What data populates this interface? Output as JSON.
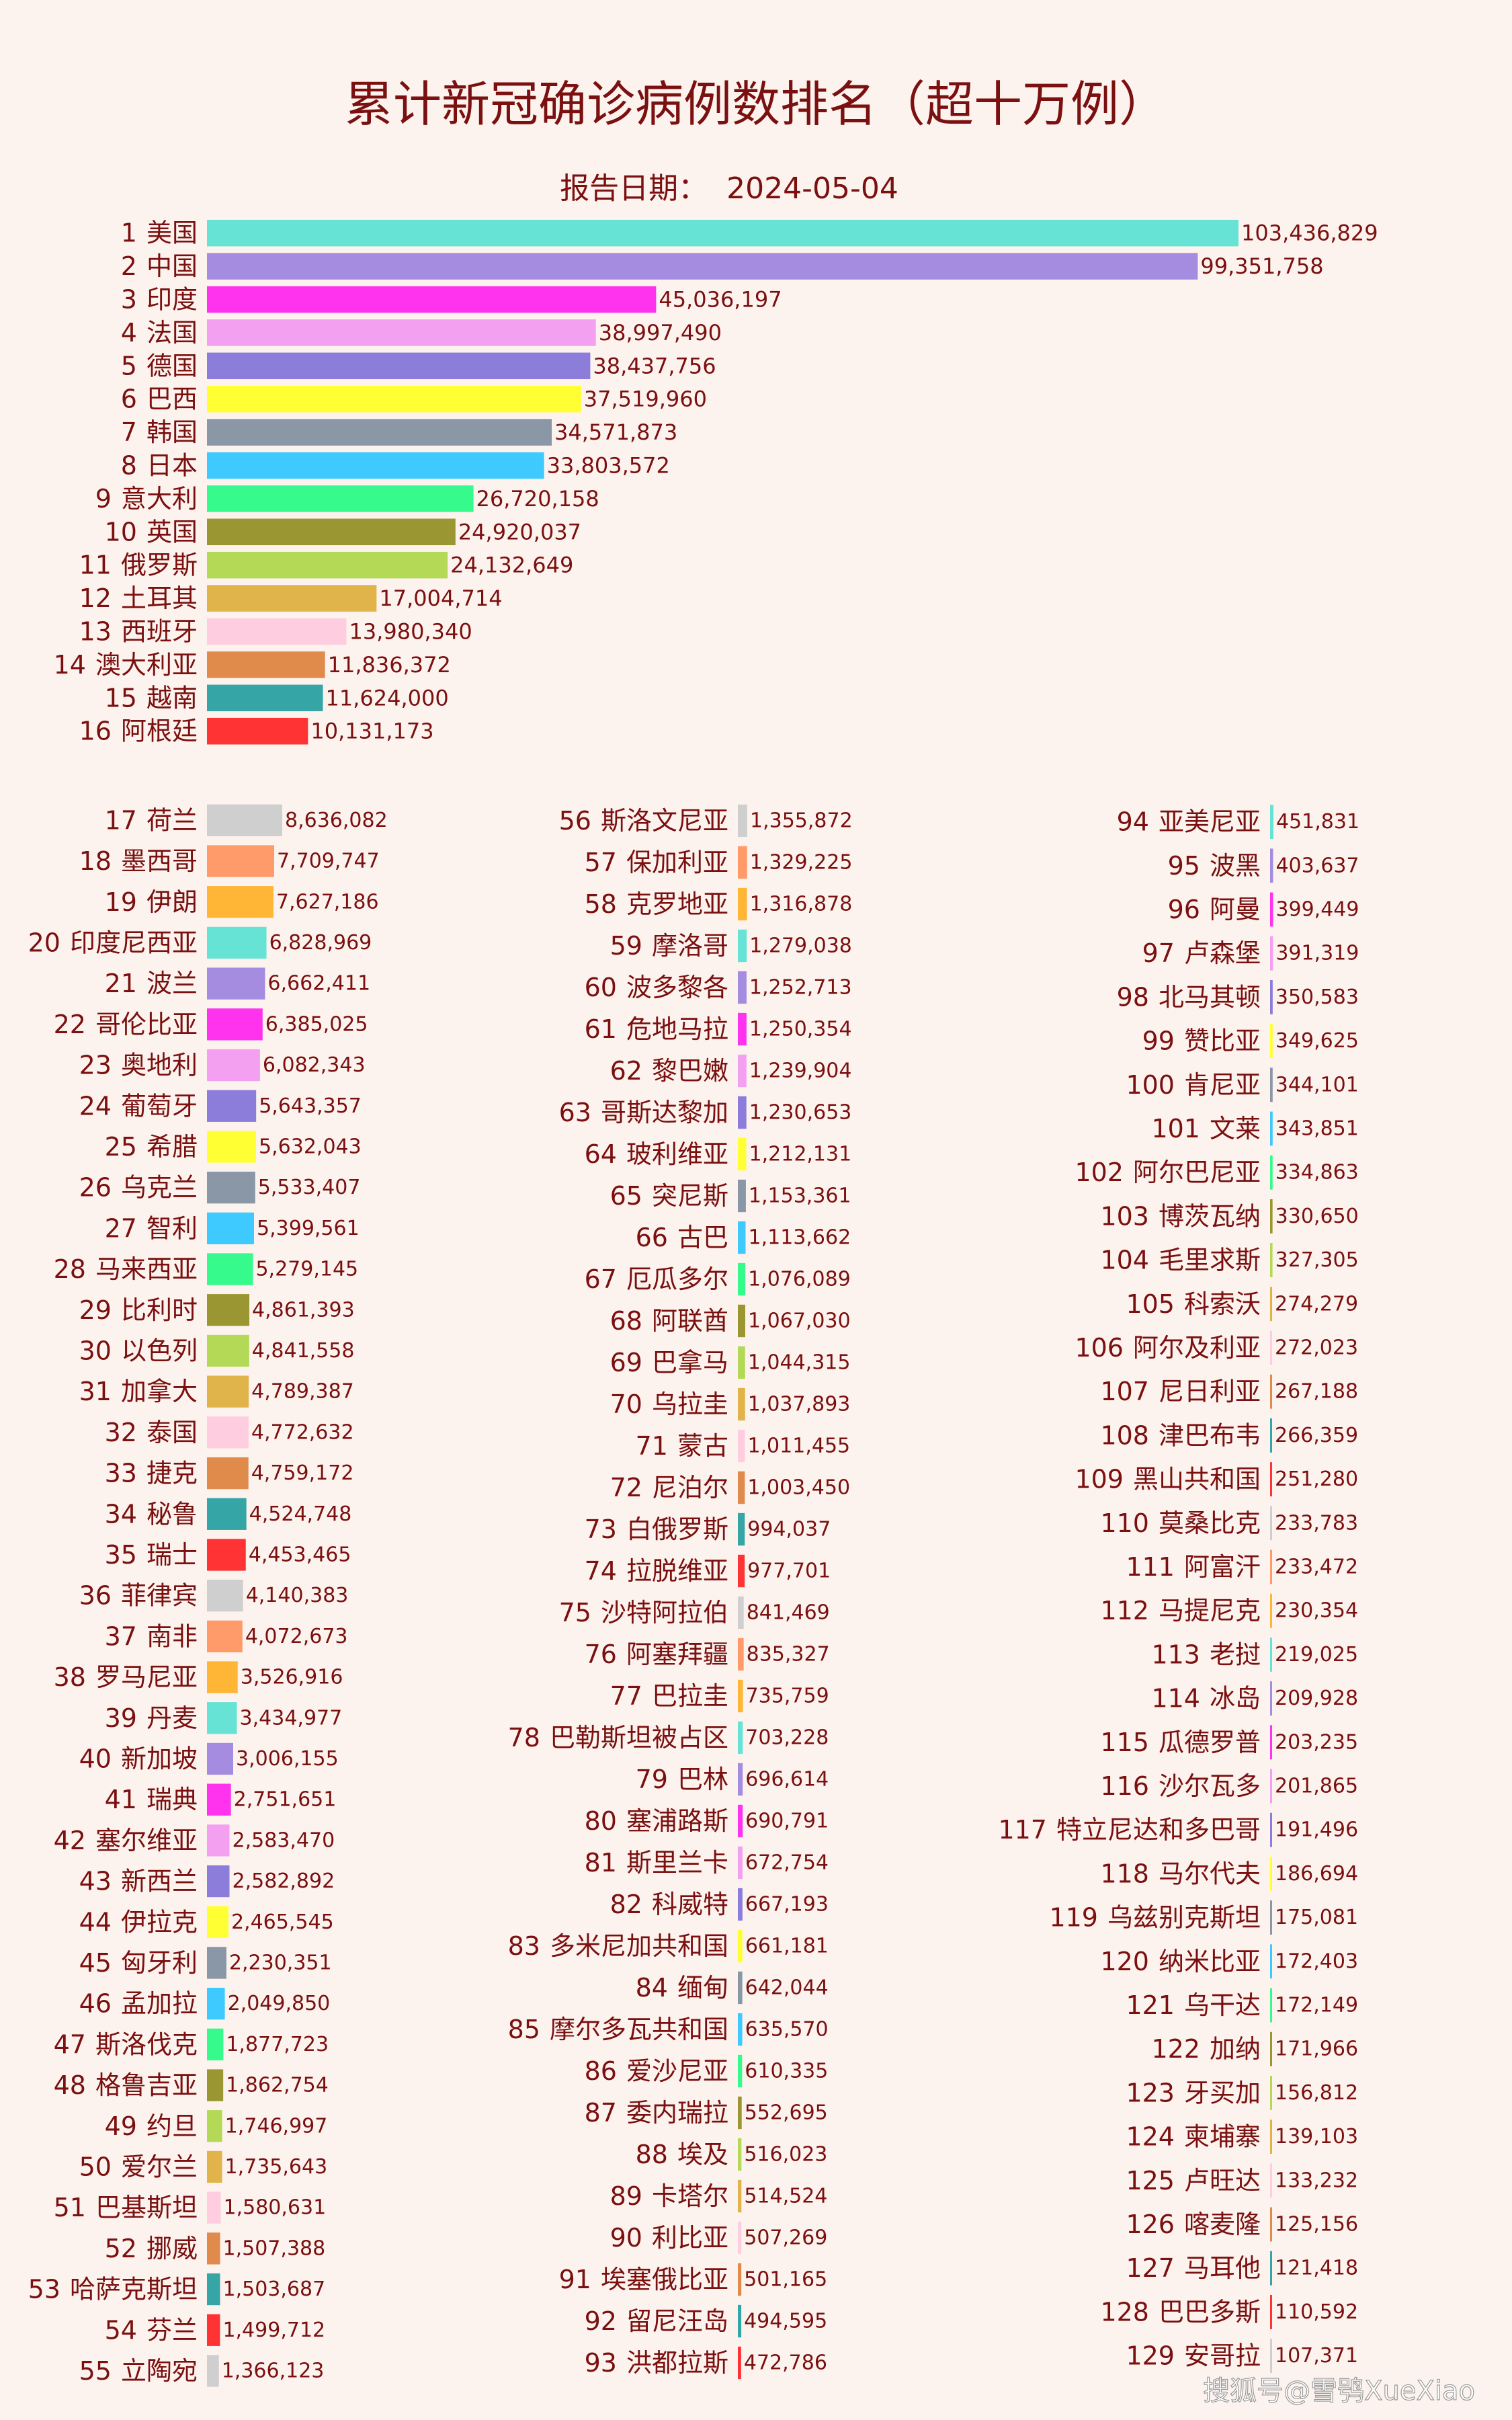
{
  "title": "累计新冠确诊病例数排名（超十万例）",
  "subtitle": "报告日期：  2024-05-04",
  "watermark": "搜狐号@雪鸮XueXiao",
  "colors": {
    "background": "#fdf3ee",
    "title": "#7a1010",
    "label": "#7a1010",
    "value": "#7a1010",
    "palette": [
      "#66e3d5",
      "#a58ce0",
      "#ff33ee",
      "#f3a0f0",
      "#8c7ddb",
      "#ffff33",
      "#8a97a6",
      "#3fcaff",
      "#36fa8c",
      "#9a9632",
      "#b4d956",
      "#e0b44a",
      "#ffcde0",
      "#e08a4c",
      "#36a5a5",
      "#ff3333",
      "#cfcfcf",
      "#ff9a6a",
      "#ffb637"
    ]
  },
  "chart_data": {
    "type": "bar",
    "orientation": "horizontal",
    "title": "累计新冠确诊病例数排名（超十万例）",
    "subtitle": "报告日期：  2024-05-04",
    "top_group": {
      "ranks": [
        "1",
        "2",
        "3",
        "4",
        "5",
        "6",
        "7",
        "8",
        "9",
        "10",
        "11",
        "12",
        "13",
        "14",
        "15",
        "16"
      ],
      "categories": [
        "美国",
        "中国",
        "印度",
        "法国",
        "德国",
        "巴西",
        "韩国",
        "日本",
        "意大利",
        "英国",
        "俄罗斯",
        "土耳其",
        "西班牙",
        "澳大利亚",
        "越南",
        "阿根廷"
      ],
      "values": [
        103436829,
        99351758,
        45036197,
        38997490,
        38437756,
        37519960,
        34571873,
        33803572,
        26720158,
        24920037,
        24132649,
        17004714,
        13980340,
        11836372,
        11624000,
        10131173
      ],
      "value_labels": [
        "103,436,829",
        "99,351,758",
        "45,036,197",
        "38,997,490",
        "38,437,756",
        "37,519,960",
        "34,571,873",
        "33,803,572",
        "26,720,158",
        "24,920,037",
        "24,132,649",
        "17,004,714",
        "13,980,340",
        "11,836,372",
        "11,624,000",
        "10,131,173"
      ]
    },
    "columns": [
      {
        "ranks": [
          "17",
          "18",
          "19",
          "20",
          "21",
          "22",
          "23",
          "24",
          "25",
          "26",
          "27",
          "28",
          "29",
          "30",
          "31",
          "32",
          "33",
          "34",
          "35",
          "36",
          "37",
          "38",
          "39",
          "40",
          "41",
          "42",
          "43",
          "44",
          "45",
          "46",
          "47",
          "48",
          "49",
          "50",
          "51",
          "52",
          "53",
          "54",
          "55"
        ],
        "categories": [
          "荷兰",
          "墨西哥",
          "伊朗",
          "印度尼西亚",
          "波兰",
          "哥伦比亚",
          "奥地利",
          "葡萄牙",
          "希腊",
          "乌克兰",
          "智利",
          "马来西亚",
          "比利时",
          "以色列",
          "加拿大",
          "泰国",
          "捷克",
          "秘鲁",
          "瑞士",
          "菲律宾",
          "南非",
          "罗马尼亚",
          "丹麦",
          "新加坡",
          "瑞典",
          "塞尔维亚",
          "新西兰",
          "伊拉克",
          "匈牙利",
          "孟加拉",
          "斯洛伐克",
          "格鲁吉亚",
          "约旦",
          "爱尔兰",
          "巴基斯坦",
          "挪威",
          "哈萨克斯坦",
          "芬兰",
          "立陶宛"
        ],
        "values": [
          8636082,
          7709747,
          7627186,
          6828969,
          6662411,
          6385025,
          6082343,
          5643357,
          5632043,
          5533407,
          5399561,
          5279145,
          4861393,
          4841558,
          4789387,
          4772632,
          4759172,
          4524748,
          4453465,
          4140383,
          4072673,
          3526916,
          3434977,
          3006155,
          2751651,
          2583470,
          2582892,
          2465545,
          2230351,
          2049850,
          1877723,
          1862754,
          1746997,
          1735643,
          1580631,
          1507388,
          1503687,
          1499712,
          1366123
        ],
        "value_labels": [
          "8,636,082",
          "7,709,747",
          "7,627,186",
          "6,828,969",
          "6,662,411",
          "6,385,025",
          "6,082,343",
          "5,643,357",
          "5,632,043",
          "5,533,407",
          "5,399,561",
          "5,279,145",
          "4,861,393",
          "4,841,558",
          "4,789,387",
          "4,772,632",
          "4,759,172",
          "4,524,748",
          "4,453,465",
          "4,140,383",
          "4,072,673",
          "3,526,916",
          "3,434,977",
          "3,006,155",
          "2,751,651",
          "2,583,470",
          "2,582,892",
          "2,465,545",
          "2,230,351",
          "2,049,850",
          "1,877,723",
          "1,862,754",
          "1,746,997",
          "1,735,643",
          "1,580,631",
          "1,507,388",
          "1,503,687",
          "1,499,712",
          "1,366,123"
        ]
      },
      {
        "ranks": [
          "56",
          "57",
          "58",
          "59",
          "60",
          "61",
          "62",
          "63",
          "64",
          "65",
          "66",
          "67",
          "68",
          "69",
          "70",
          "71",
          "72",
          "73",
          "74",
          "75",
          "76",
          "77",
          "78",
          "79",
          "80",
          "81",
          "82",
          "83",
          "84",
          "85",
          "86",
          "87",
          "88",
          "89",
          "90",
          "91",
          "92",
          "93"
        ],
        "categories": [
          "斯洛文尼亚",
          "保加利亚",
          "克罗地亚",
          "摩洛哥",
          "波多黎各",
          "危地马拉",
          "黎巴嫩",
          "哥斯达黎加",
          "玻利维亚",
          "突尼斯",
          "古巴",
          "厄瓜多尔",
          "阿联酋",
          "巴拿马",
          "乌拉圭",
          "蒙古",
          "尼泊尔",
          "白俄罗斯",
          "拉脱维亚",
          "沙特阿拉伯",
          "阿塞拜疆",
          "巴拉圭",
          "巴勒斯坦被占区",
          "巴林",
          "塞浦路斯",
          "斯里兰卡",
          "科威特",
          "多米尼加共和国",
          "缅甸",
          "摩尔多瓦共和国",
          "爱沙尼亚",
          "委内瑞拉",
          "埃及",
          "卡塔尔",
          "利比亚",
          "埃塞俄比亚",
          "留尼汪岛",
          "洪都拉斯"
        ],
        "values": [
          1355872,
          1329225,
          1316878,
          1279038,
          1252713,
          1250354,
          1239904,
          1230653,
          1212131,
          1153361,
          1113662,
          1076089,
          1067030,
          1044315,
          1037893,
          1011455,
          1003450,
          994037,
          977701,
          841469,
          835327,
          735759,
          703228,
          696614,
          690791,
          672754,
          667193,
          661181,
          642044,
          635570,
          610335,
          552695,
          516023,
          514524,
          507269,
          501165,
          494595,
          472786
        ],
        "value_labels": [
          "1,355,872",
          "1,329,225",
          "1,316,878",
          "1,279,038",
          "1,252,713",
          "1,250,354",
          "1,239,904",
          "1,230,653",
          "1,212,131",
          "1,153,361",
          "1,113,662",
          "1,076,089",
          "1,067,030",
          "1,044,315",
          "1,037,893",
          "1,011,455",
          "1,003,450",
          "994,037",
          "977,701",
          "841,469",
          "835,327",
          "735,759",
          "703,228",
          "696,614",
          "690,791",
          "672,754",
          "667,193",
          "661,181",
          "642,044",
          "635,570",
          "610,335",
          "552,695",
          "516,023",
          "514,524",
          "507,269",
          "501,165",
          "494,595",
          "472,786"
        ]
      },
      {
        "ranks": [
          "94",
          "95",
          "96",
          "97",
          "98",
          "99",
          "100",
          "101",
          "102",
          "103",
          "104",
          "105",
          "106",
          "107",
          "108",
          "109",
          "110",
          "111",
          "112",
          "113",
          "114",
          "115",
          "116",
          "117",
          "118",
          "119",
          "120",
          "121",
          "122",
          "123",
          "124",
          "125",
          "126",
          "127",
          "128",
          "129"
        ],
        "categories": [
          "亚美尼亚",
          "波黑",
          "阿曼",
          "卢森堡",
          "北马其顿",
          "赞比亚",
          "肯尼亚",
          "文莱",
          "阿尔巴尼亚",
          "博茨瓦纳",
          "毛里求斯",
          "科索沃",
          "阿尔及利亚",
          "尼日利亚",
          "津巴布韦",
          "黑山共和国",
          "莫桑比克",
          "阿富汗",
          "马提尼克",
          "老挝",
          "冰岛",
          "瓜德罗普",
          "沙尔瓦多",
          "特立尼达和多巴哥",
          "马尔代夫",
          "乌兹别克斯坦",
          "纳米比亚",
          "乌干达",
          "加纳",
          "牙买加",
          "柬埔寨",
          "卢旺达",
          "喀麦隆",
          "马耳他",
          "巴巴多斯",
          "安哥拉"
        ],
        "values": [
          451831,
          403637,
          399449,
          391319,
          350583,
          349625,
          344101,
          343851,
          334863,
          330650,
          327305,
          274279,
          272023,
          267188,
          266359,
          251280,
          233783,
          233472,
          230354,
          219025,
          209928,
          203235,
          201865,
          191496,
          186694,
          175081,
          172403,
          172149,
          171966,
          156812,
          139103,
          133232,
          125156,
          121418,
          110592,
          107371
        ],
        "value_labels": [
          "451,831",
          "403,637",
          "399,449",
          "391,319",
          "350,583",
          "349,625",
          "344,101",
          "343,851",
          "334,863",
          "330,650",
          "327,305",
          "274,279",
          "272,023",
          "267,188",
          "266,359",
          "251,280",
          "233,783",
          "233,472",
          "230,354",
          "219,025",
          "209,928",
          "203,235",
          "201,865",
          "191,496",
          "186,694",
          "175,081",
          "172,403",
          "172,149",
          "171,966",
          "156,812",
          "139,103",
          "133,232",
          "125,156",
          "121,418",
          "110,592",
          "107,371"
        ]
      }
    ]
  }
}
